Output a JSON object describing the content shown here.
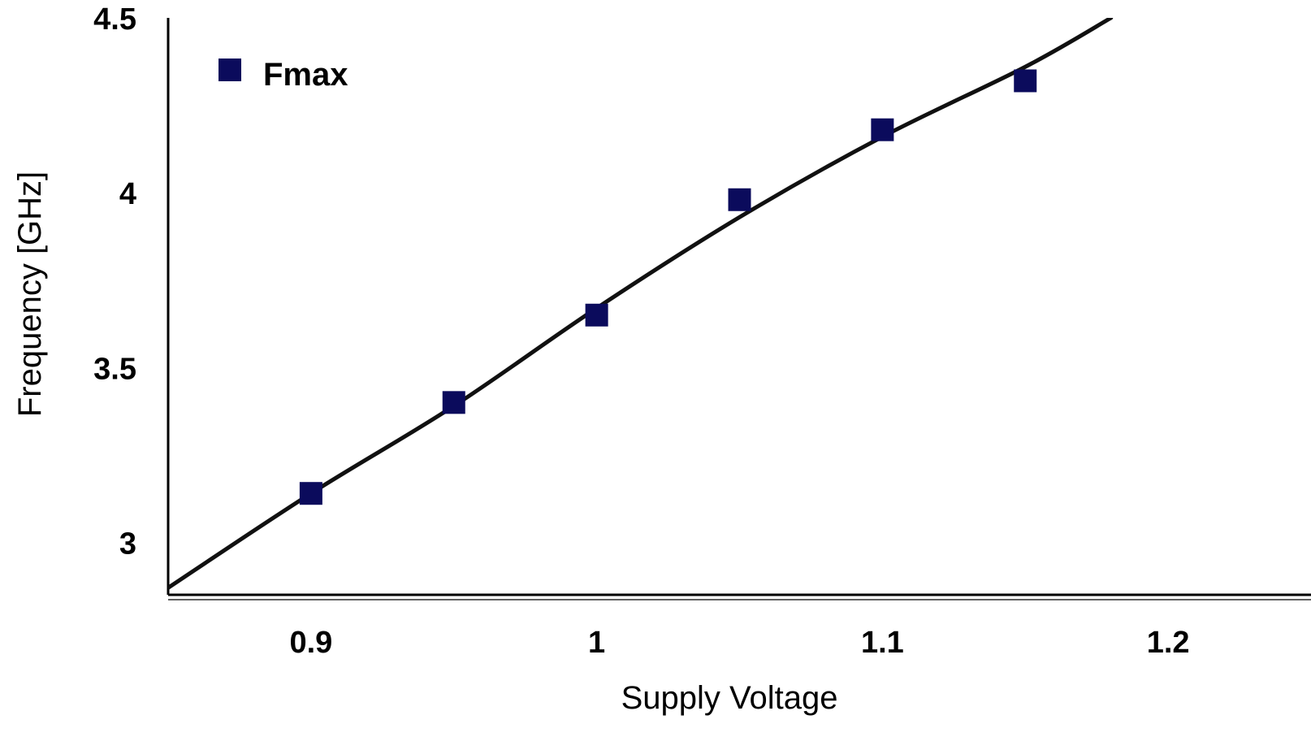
{
  "chart_data": {
    "type": "scatter",
    "title": "",
    "xlabel": "Supply Voltage",
    "ylabel": "Frequency [GHz]",
    "xlim": [
      0.85,
      1.25
    ],
    "ylim": [
      2.85,
      4.5
    ],
    "x_ticks": [
      {
        "value": 0.9,
        "label": "0.9"
      },
      {
        "value": 1.0,
        "label": "1"
      },
      {
        "value": 1.1,
        "label": "1.1"
      },
      {
        "value": 1.2,
        "label": "1.2"
      }
    ],
    "y_ticks": [
      {
        "value": 3.0,
        "label": "3"
      },
      {
        "value": 3.5,
        "label": "3.5"
      },
      {
        "value": 4.0,
        "label": "4"
      },
      {
        "value": 4.5,
        "label": "4.5"
      }
    ],
    "grid": false,
    "legend": {
      "position": "top-left",
      "entries": [
        "Fmax"
      ]
    },
    "series": [
      {
        "name": "Fmax",
        "marker": "square",
        "color": "#0b0b5c",
        "x": [
          0.9,
          0.95,
          1.0,
          1.05,
          1.1,
          1.15
        ],
        "y": [
          3.14,
          3.4,
          3.65,
          3.98,
          4.18,
          4.32
        ]
      }
    ],
    "trend_line": {
      "color": "#111111",
      "x": [
        0.85,
        0.9,
        0.95,
        1.0,
        1.05,
        1.1,
        1.15,
        1.18
      ],
      "y": [
        2.87,
        3.14,
        3.39,
        3.67,
        3.93,
        4.16,
        4.36,
        4.5
      ]
    }
  }
}
